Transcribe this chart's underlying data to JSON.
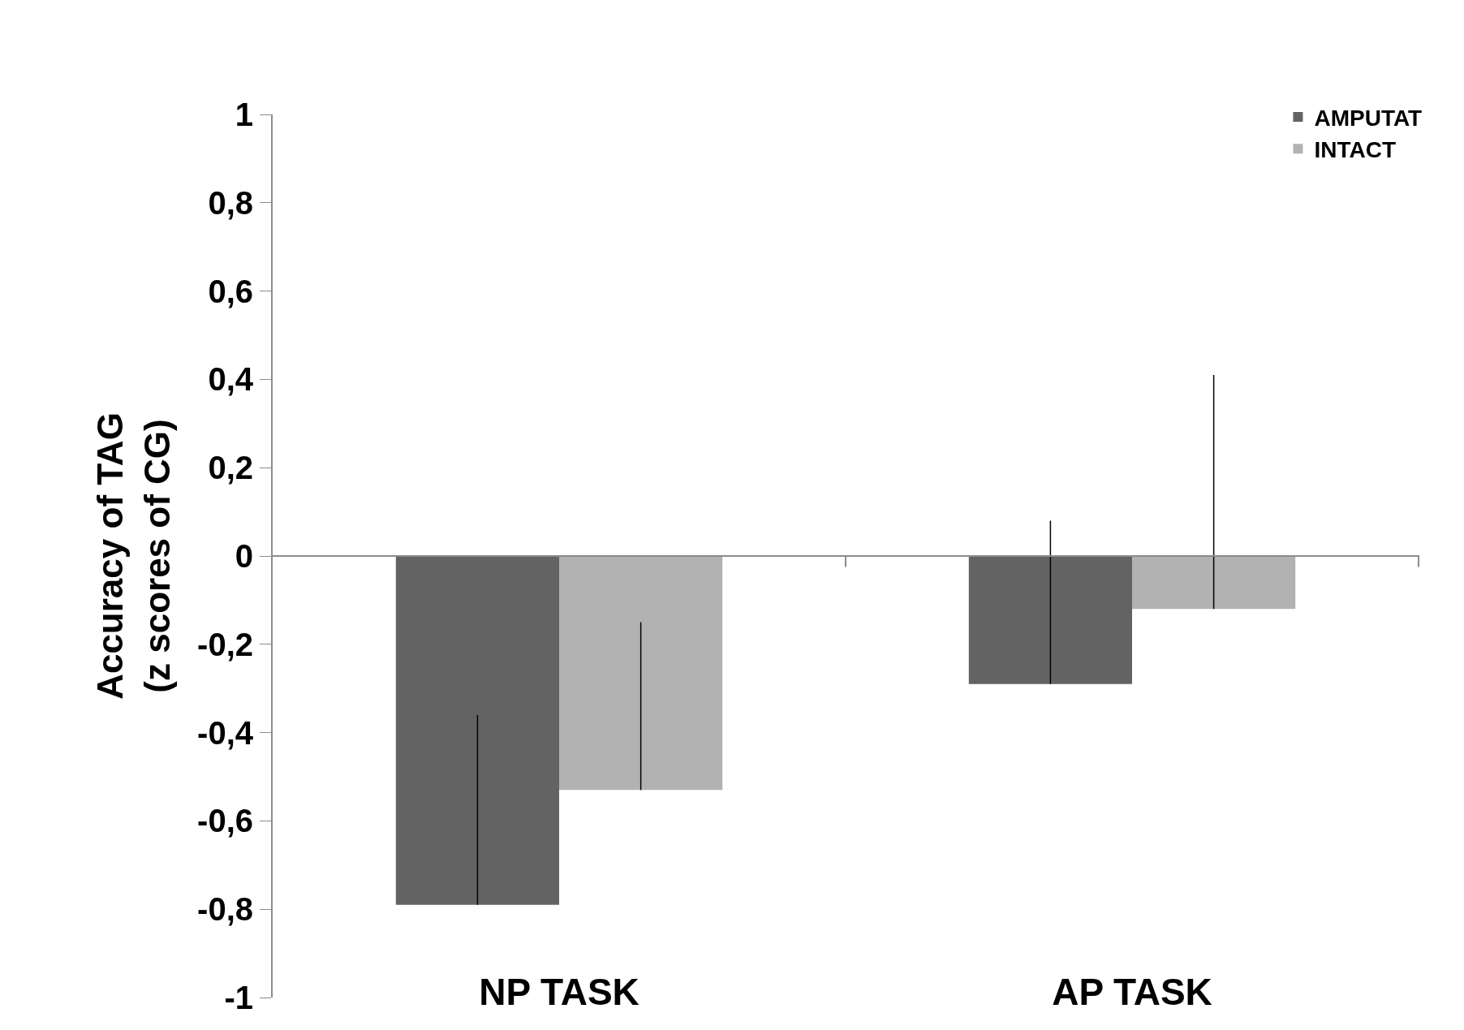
{
  "chart_data": {
    "type": "bar",
    "ylabel": "Accuracy of TAG\n(z scores of CG)",
    "categories": [
      "NP TASK",
      "AP TASK"
    ],
    "series": [
      {
        "name": "AMPUTAT",
        "color": "#636363",
        "values": [
          -0.79,
          -0.29
        ],
        "errors": [
          [
            -0.79,
            -0.36
          ],
          [
            -0.29,
            0.08
          ]
        ]
      },
      {
        "name": "INTACT",
        "color": "#b2b2b2",
        "values": [
          -0.53,
          -0.12
        ],
        "errors": [
          [
            -0.53,
            -0.15
          ],
          [
            -0.12,
            0.41
          ]
        ]
      }
    ],
    "ylim": [
      -1,
      1
    ],
    "yticks": [
      {
        "value": -1,
        "label": "-1"
      },
      {
        "value": -0.8,
        "label": "-0,8"
      },
      {
        "value": -0.6,
        "label": "-0,6"
      },
      {
        "value": -0.4,
        "label": "-0,4"
      },
      {
        "value": -0.2,
        "label": "-0,2"
      },
      {
        "value": 0,
        "label": "0"
      },
      {
        "value": 0.2,
        "label": "0,2"
      },
      {
        "value": 0.4,
        "label": "0,4"
      },
      {
        "value": 0.6,
        "label": "0,6"
      },
      {
        "value": 0.8,
        "label": "0,8"
      },
      {
        "value": 1,
        "label": "1"
      }
    ],
    "legend": "top right"
  }
}
